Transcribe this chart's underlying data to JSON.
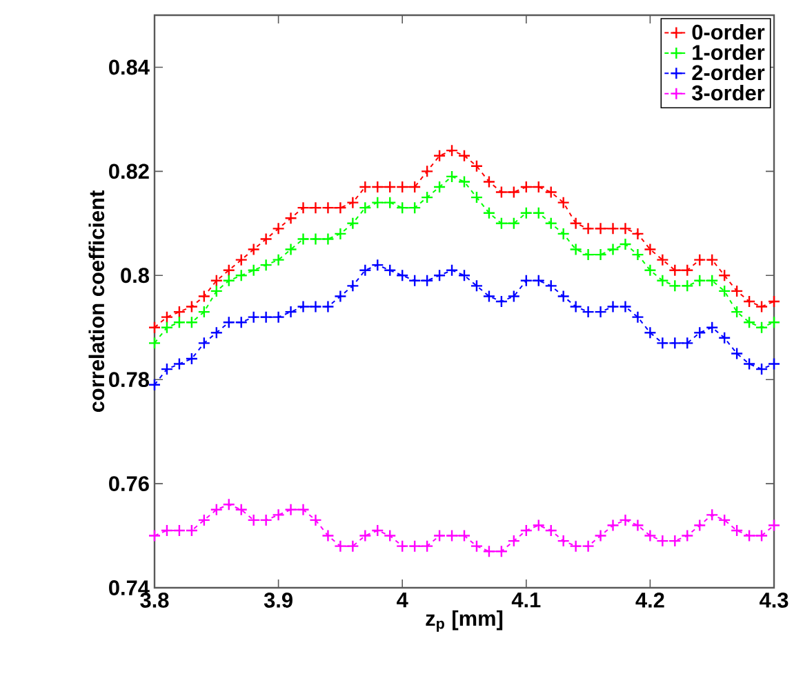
{
  "chart_data": {
    "type": "line",
    "xlabel": "z$_{p}$ [mm]",
    "ylabel": "correlation coefficient",
    "x": [
      3.8,
      3.81,
      3.82,
      3.83,
      3.84,
      3.85,
      3.86,
      3.87,
      3.88,
      3.89,
      3.9,
      3.91,
      3.92,
      3.93,
      3.94,
      3.95,
      3.96,
      3.97,
      3.98,
      3.99,
      4.0,
      4.01,
      4.02,
      4.03,
      4.04,
      4.05,
      4.06,
      4.07,
      4.08,
      4.09,
      4.1,
      4.11,
      4.12,
      4.13,
      4.14,
      4.15,
      4.16,
      4.17,
      4.18,
      4.19,
      4.2,
      4.21,
      4.22,
      4.23,
      4.24,
      4.25,
      4.26,
      4.27,
      4.28,
      4.29,
      4.3
    ],
    "series": [
      {
        "name": "0-order",
        "color": "#ff0000",
        "values": [
          0.79,
          0.792,
          0.793,
          0.794,
          0.796,
          0.799,
          0.801,
          0.803,
          0.805,
          0.807,
          0.809,
          0.811,
          0.813,
          0.813,
          0.813,
          0.813,
          0.814,
          0.817,
          0.817,
          0.817,
          0.817,
          0.817,
          0.82,
          0.823,
          0.824,
          0.823,
          0.821,
          0.818,
          0.816,
          0.816,
          0.817,
          0.817,
          0.816,
          0.814,
          0.81,
          0.809,
          0.809,
          0.809,
          0.809,
          0.808,
          0.805,
          0.803,
          0.801,
          0.801,
          0.803,
          0.803,
          0.8,
          0.797,
          0.795,
          0.794,
          0.795
        ]
      },
      {
        "name": "1-order",
        "color": "#00ff00",
        "values": [
          0.787,
          0.79,
          0.791,
          0.791,
          0.793,
          0.797,
          0.799,
          0.8,
          0.801,
          0.802,
          0.803,
          0.805,
          0.807,
          0.807,
          0.807,
          0.808,
          0.81,
          0.813,
          0.814,
          0.814,
          0.813,
          0.813,
          0.815,
          0.817,
          0.819,
          0.818,
          0.815,
          0.812,
          0.81,
          0.81,
          0.812,
          0.812,
          0.81,
          0.808,
          0.805,
          0.804,
          0.804,
          0.805,
          0.806,
          0.804,
          0.801,
          0.799,
          0.798,
          0.798,
          0.799,
          0.799,
          0.797,
          0.793,
          0.791,
          0.79,
          0.791
        ]
      },
      {
        "name": "2-order",
        "color": "#0000ff",
        "values": [
          0.779,
          0.782,
          0.783,
          0.784,
          0.787,
          0.789,
          0.791,
          0.791,
          0.792,
          0.792,
          0.792,
          0.793,
          0.794,
          0.794,
          0.794,
          0.796,
          0.798,
          0.801,
          0.802,
          0.801,
          0.8,
          0.799,
          0.799,
          0.8,
          0.801,
          0.8,
          0.798,
          0.796,
          0.795,
          0.796,
          0.799,
          0.799,
          0.798,
          0.796,
          0.794,
          0.793,
          0.793,
          0.794,
          0.794,
          0.792,
          0.789,
          0.787,
          0.787,
          0.787,
          0.789,
          0.79,
          0.788,
          0.785,
          0.783,
          0.782,
          0.783
        ]
      },
      {
        "name": "3-order",
        "color": "#ff00ff",
        "values": [
          0.75,
          0.751,
          0.751,
          0.751,
          0.753,
          0.755,
          0.756,
          0.755,
          0.753,
          0.753,
          0.754,
          0.755,
          0.755,
          0.753,
          0.75,
          0.748,
          0.748,
          0.75,
          0.751,
          0.75,
          0.748,
          0.748,
          0.748,
          0.75,
          0.75,
          0.75,
          0.748,
          0.747,
          0.747,
          0.749,
          0.751,
          0.752,
          0.751,
          0.749,
          0.748,
          0.748,
          0.75,
          0.752,
          0.753,
          0.752,
          0.75,
          0.749,
          0.749,
          0.75,
          0.752,
          0.754,
          0.753,
          0.751,
          0.75,
          0.75,
          0.752
        ]
      }
    ],
    "xlim": [
      3.8,
      4.3
    ],
    "ylim": [
      0.74,
      0.85
    ],
    "xticks": [
      3.8,
      3.9,
      4,
      4.1,
      4.2,
      4.3
    ],
    "yticks": [
      0.74,
      0.76,
      0.8,
      0.78,
      0.82,
      0.84
    ],
    "grid": false,
    "legend": "top right",
    "marker": "cross",
    "line_style": "dashed"
  }
}
